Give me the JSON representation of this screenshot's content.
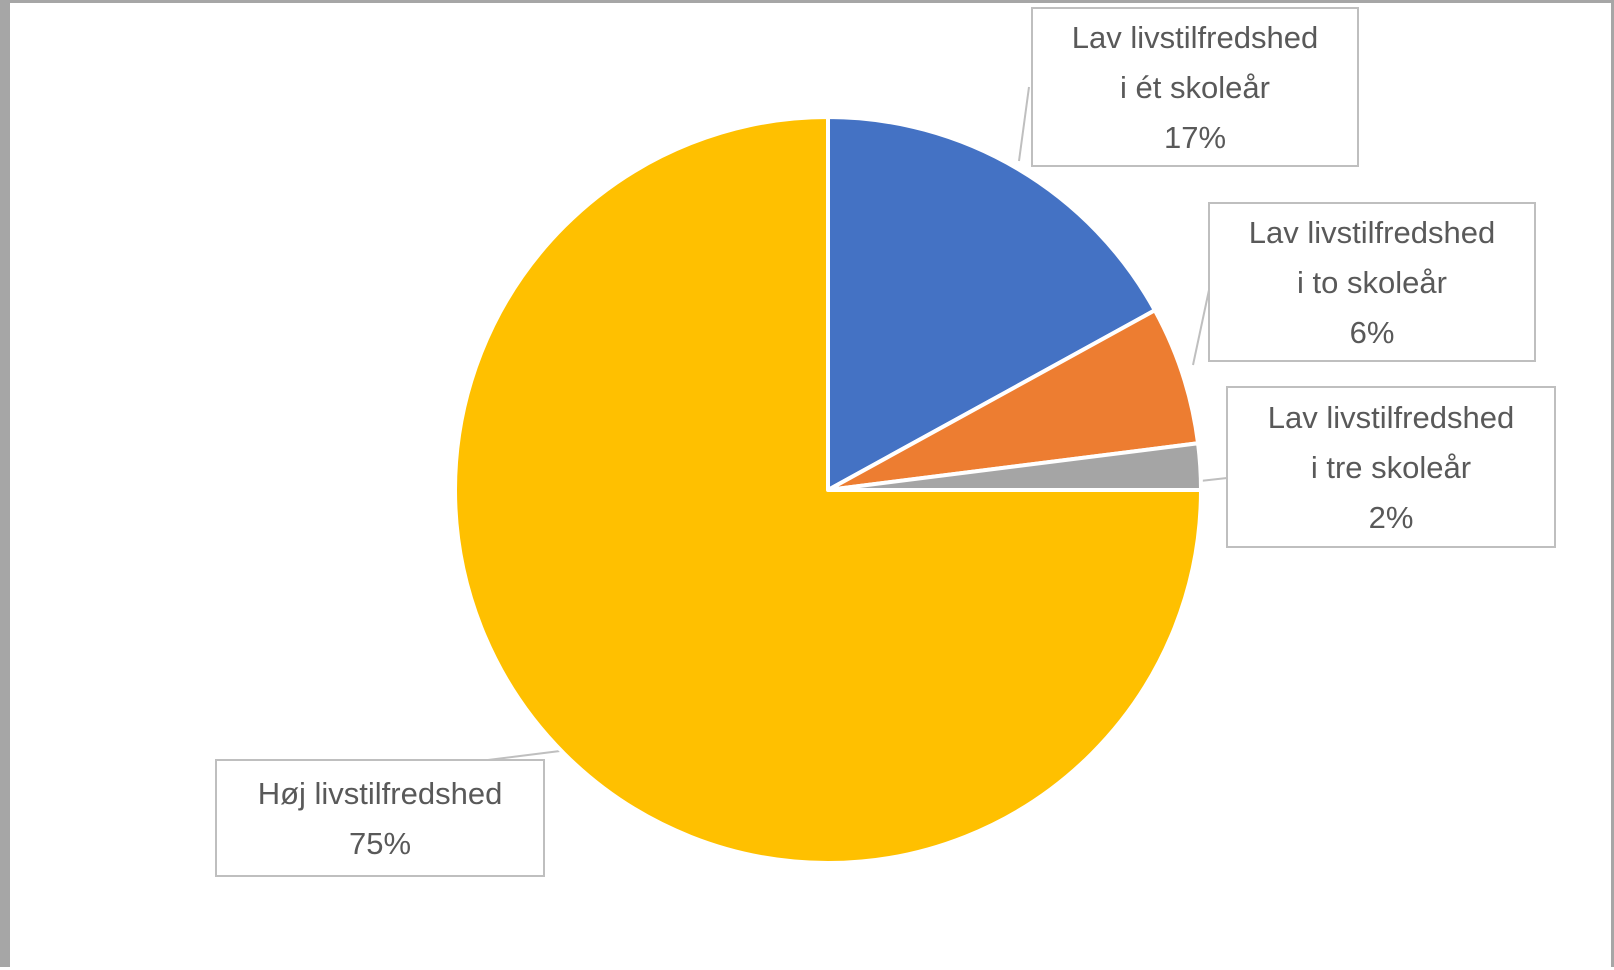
{
  "chart_data": {
    "type": "pie",
    "title": "",
    "legend": "none",
    "slices": [
      {
        "label_lines": [
          "Lav livstilfredshed",
          "i ét skoleår"
        ],
        "value": 17,
        "value_label": "17%",
        "color": "#4472C4"
      },
      {
        "label_lines": [
          "Lav livstilfredshed",
          "i to skoleår"
        ],
        "value": 6,
        "value_label": "6%",
        "color": "#ED7D31"
      },
      {
        "label_lines": [
          "Lav livstilfredshed",
          "i tre skoleår"
        ],
        "value": 2,
        "value_label": "2%",
        "color": "#A5A5A5"
      },
      {
        "label_lines": [
          "Høj livstilfredshed"
        ],
        "value": 75,
        "value_label": "75%",
        "color": "#FFC000"
      }
    ]
  }
}
